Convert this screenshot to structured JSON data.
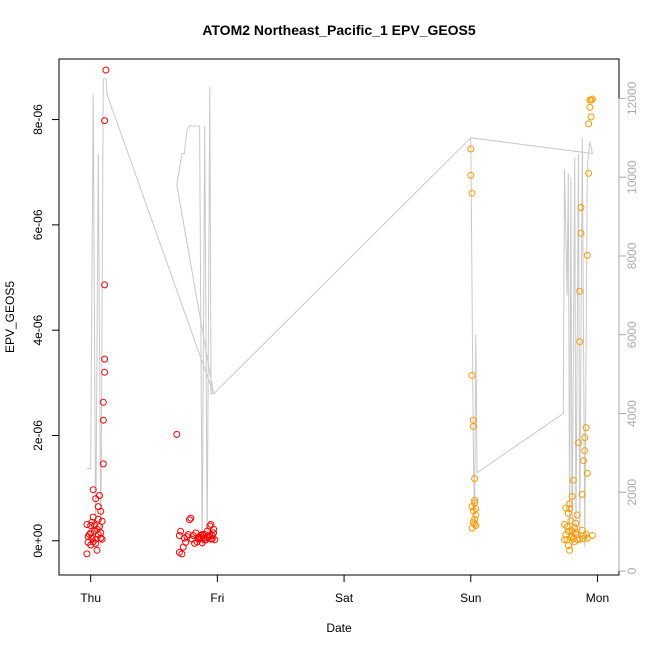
{
  "chart_data": {
    "type": "scatter",
    "title": "ATOM2 Northeast_Pacific_1 EPV_GEOS5",
    "xlabel": "Date",
    "ylabel": "EPV_GEOS5",
    "x_ticks": [
      {
        "label": "Thu",
        "value": 0
      },
      {
        "label": "Fri",
        "value": 1
      },
      {
        "label": "Sat",
        "value": 2
      },
      {
        "label": "Sun",
        "value": 3
      },
      {
        "label": "Mon",
        "value": 4
      }
    ],
    "xlim": [
      -0.25,
      4.17
    ],
    "ylim": [
      -6.5e-07,
      9.15e-06
    ],
    "y_ticks": [
      {
        "label": "0e+00",
        "value": 0
      },
      {
        "label": "2e-06",
        "value": 2e-06
      },
      {
        "label": "4e-06",
        "value": 4e-06
      },
      {
        "label": "6e-06",
        "value": 6e-06
      },
      {
        "label": "8e-06",
        "value": 8e-06
      }
    ],
    "y2lim": [
      -100,
      13000
    ],
    "y2_ticks": [
      {
        "label": "0",
        "value": 0
      },
      {
        "label": "2000",
        "value": 2000
      },
      {
        "label": "4000",
        "value": 4000
      },
      {
        "label": "6000",
        "value": 6000
      },
      {
        "label": "8000",
        "value": 8000
      },
      {
        "label": "10000",
        "value": 10000
      },
      {
        "label": "12000",
        "value": 12000
      }
    ],
    "grid": false,
    "colors": {
      "series_red": "#ff0000",
      "series_orange": "#ff9900",
      "altitude_line": "#c8c8c8",
      "axis": "#000000",
      "right_axis": "#aaaaaa"
    },
    "series": [
      {
        "color": "#ff0000",
        "marker": "open-circle",
        "points": [
          [
            -0.03,
            3.1e-07
          ],
          [
            -0.02,
            -3e-08
          ],
          [
            -0.01,
            1.2e-07
          ],
          [
            0.0,
            2.9e-07
          ],
          [
            0.0,
            -8e-08
          ],
          [
            0.01,
            5e-08
          ],
          [
            0.01,
            3.5e-07
          ],
          [
            0.02,
            9.7e-07
          ],
          [
            0.02,
            -2e-08
          ],
          [
            0.03,
            1.8e-07
          ],
          [
            0.03,
            3e-07
          ],
          [
            0.04,
            8e-07
          ],
          [
            0.04,
            3e-08
          ],
          [
            0.05,
            2.2e-07
          ],
          [
            0.05,
            -1.8e-07
          ],
          [
            0.06,
            4.1e-07
          ],
          [
            0.06,
            1.2e-07
          ],
          [
            0.07,
            8.6e-07
          ],
          [
            0.07,
            2.7e-07
          ],
          [
            0.08,
            5e-08
          ],
          [
            0.08,
            5.6e-07
          ],
          [
            0.09,
            3.7e-07
          ],
          [
            0.09,
            3e-08
          ],
          [
            0.1,
            1.46e-06
          ],
          [
            0.1,
            2.29e-06
          ],
          [
            0.1,
            2.63e-06
          ],
          [
            0.11,
            3.2e-06
          ],
          [
            0.11,
            3.45e-06
          ],
          [
            0.11,
            4.86e-06
          ],
          [
            0.11,
            7.98e-06
          ],
          [
            0.12,
            8.94e-06
          ],
          [
            -0.03,
            -2.5e-07
          ],
          [
            -0.02,
            8e-08
          ],
          [
            0.0,
            1.5e-07
          ],
          [
            0.02,
            4.5e-07
          ],
          [
            0.04,
            -5e-08
          ],
          [
            0.06,
            6.5e-07
          ],
          [
            0.08,
            1.5e-07
          ],
          [
            0.68,
            2.02e-06
          ],
          [
            0.7,
            1e-07
          ],
          [
            0.7,
            -2.2e-07
          ],
          [
            0.71,
            1.8e-07
          ],
          [
            0.72,
            -2.5e-07
          ],
          [
            0.73,
            -1.2e-07
          ],
          [
            0.74,
            5e-08
          ],
          [
            0.75,
            -3e-08
          ],
          [
            0.76,
            8e-08
          ],
          [
            0.77,
            1.2e-07
          ],
          [
            0.78,
            4e-07
          ],
          [
            0.79,
            4.3e-07
          ],
          [
            0.8,
            3e-08
          ],
          [
            0.81,
            1e-07
          ],
          [
            0.82,
            -5e-08
          ],
          [
            0.83,
            1.5e-07
          ],
          [
            0.84,
            -2e-08
          ],
          [
            0.85,
            7e-08
          ],
          [
            0.86,
            3e-08
          ],
          [
            0.87,
            1e-07
          ],
          [
            0.88,
            -4e-08
          ],
          [
            0.89,
            5e-08
          ],
          [
            0.9,
            1.2e-07
          ],
          [
            0.91,
            2e-08
          ],
          [
            0.92,
            1.8e-07
          ],
          [
            0.93,
            8e-08
          ],
          [
            0.94,
            2.8e-07
          ],
          [
            0.95,
            3e-08
          ],
          [
            0.96,
            1e-07
          ],
          [
            0.97,
            2.2e-07
          ],
          [
            0.86,
            5e-08
          ],
          [
            0.88,
            1.2e-07
          ],
          [
            0.9,
            1e-08
          ],
          [
            0.92,
            6e-08
          ],
          [
            0.94,
            1.1e-07
          ],
          [
            0.96,
            4e-08
          ],
          [
            0.97,
            1.5e-07
          ],
          [
            0.98,
            2e-08
          ],
          [
            0.95,
            3.1e-07
          ],
          [
            0.89,
            1e-07
          ]
        ]
      },
      {
        "color": "#ff9900",
        "marker": "open-circle",
        "points": [
          [
            3.0,
            7.44e-06
          ],
          [
            3.0,
            6.94e-06
          ],
          [
            3.01,
            6.6e-06
          ],
          [
            3.01,
            3.14e-06
          ],
          [
            3.02,
            2.29e-06
          ],
          [
            3.02,
            2.17e-06
          ],
          [
            3.03,
            1.18e-06
          ],
          [
            3.03,
            7.2e-07
          ],
          [
            3.01,
            6.5e-07
          ],
          [
            3.02,
            5.7e-07
          ],
          [
            3.04,
            4.9e-07
          ],
          [
            3.03,
            4.1e-07
          ],
          [
            3.02,
            3.5e-07
          ],
          [
            3.04,
            2.9e-07
          ],
          [
            3.01,
            2.4e-07
          ],
          [
            3.03,
            3.2e-07
          ],
          [
            3.04,
            6.1e-07
          ],
          [
            3.03,
            7.7e-07
          ],
          [
            3.74,
            3.1e-07
          ],
          [
            3.75,
            1.2e-07
          ],
          [
            3.76,
            2e-08
          ],
          [
            3.76,
            2.7e-07
          ],
          [
            3.77,
            5.2e-07
          ],
          [
            3.77,
            1.8e-07
          ],
          [
            3.78,
            6.1e-07
          ],
          [
            3.78,
            -1.8e-07
          ],
          [
            3.79,
            6e-08
          ],
          [
            3.79,
            3.8e-07
          ],
          [
            3.8,
            1.9e-07
          ],
          [
            3.8,
            8.4e-07
          ],
          [
            3.81,
            4e-08
          ],
          [
            3.81,
            1.15e-06
          ],
          [
            3.82,
            2.5e-07
          ],
          [
            3.82,
            -2e-08
          ],
          [
            3.83,
            1.2e-07
          ],
          [
            3.83,
            3.3e-07
          ],
          [
            3.84,
            4.9e-07
          ],
          [
            3.84,
            2e-08
          ],
          [
            3.85,
            1.86e-06
          ],
          [
            3.86,
            3.78e-06
          ],
          [
            3.86,
            4.74e-06
          ],
          [
            3.87,
            5.84e-06
          ],
          [
            3.87,
            6.33e-06
          ],
          [
            3.88,
            2e-07
          ],
          [
            3.88,
            8.8e-07
          ],
          [
            3.89,
            4e-08
          ],
          [
            3.89,
            1.52e-06
          ],
          [
            3.9,
            1.71e-06
          ],
          [
            3.9,
            1.96e-06
          ],
          [
            3.91,
            2.15e-06
          ],
          [
            3.91,
            1.2e-07
          ],
          [
            3.92,
            1.28e-06
          ],
          [
            3.92,
            5.42e-06
          ],
          [
            3.93,
            6.98e-06
          ],
          [
            3.93,
            7.92e-06
          ],
          [
            3.94,
            8.23e-06
          ],
          [
            3.94,
            8.37e-06
          ],
          [
            3.95,
            8.05e-06
          ],
          [
            3.95,
            8.37e-06
          ],
          [
            3.96,
            8.39e-06
          ],
          [
            3.96,
            1e-07
          ],
          [
            3.74,
            2e-08
          ],
          [
            3.77,
            -9e-08
          ],
          [
            3.8,
            8e-08
          ],
          [
            3.83,
            1.6e-07
          ],
          [
            3.86,
            3e-08
          ],
          [
            3.89,
            1e-07
          ],
          [
            3.92,
            5e-08
          ],
          [
            3.75,
            6.2e-07
          ],
          [
            3.78,
            7e-07
          ]
        ]
      }
    ],
    "altitude_line": {
      "axis": "right",
      "color": "#c8c8c8",
      "points": [
        [
          -0.03,
          2600
        ],
        [
          0.0,
          2600
        ],
        [
          0.02,
          12100
        ],
        [
          0.04,
          700
        ],
        [
          0.06,
          10600
        ],
        [
          0.08,
          600
        ],
        [
          0.1,
          12500
        ],
        [
          0.12,
          12500
        ],
        [
          0.13,
          12100
        ],
        [
          0.97,
          4500
        ],
        [
          0.68,
          9800
        ],
        [
          0.7,
          10200
        ],
        [
          0.72,
          10600
        ],
        [
          0.74,
          10600
        ],
        [
          0.76,
          11200
        ],
        [
          0.78,
          11300
        ],
        [
          0.86,
          11300
        ],
        [
          0.88,
          600
        ],
        [
          0.9,
          11300
        ],
        [
          0.92,
          700
        ],
        [
          0.94,
          12300
        ],
        [
          0.95,
          4500
        ],
        [
          0.97,
          4500
        ],
        [
          3.0,
          11000
        ],
        [
          3.02,
          3200
        ],
        [
          3.03,
          1100
        ],
        [
          3.04,
          6000
        ],
        [
          3.05,
          2500
        ],
        [
          3.73,
          4000
        ],
        [
          3.74,
          10200
        ],
        [
          3.76,
          7000
        ],
        [
          3.77,
          10100
        ],
        [
          3.78,
          1000
        ],
        [
          3.79,
          10000
        ],
        [
          3.8,
          500
        ],
        [
          3.82,
          10500
        ],
        [
          3.83,
          900
        ],
        [
          3.85,
          10600
        ],
        [
          3.86,
          700
        ],
        [
          3.88,
          11000
        ],
        [
          3.9,
          600
        ],
        [
          3.92,
          10300
        ],
        [
          3.94,
          10900
        ],
        [
          3.96,
          10600
        ],
        [
          3.0,
          11000
        ]
      ]
    }
  }
}
